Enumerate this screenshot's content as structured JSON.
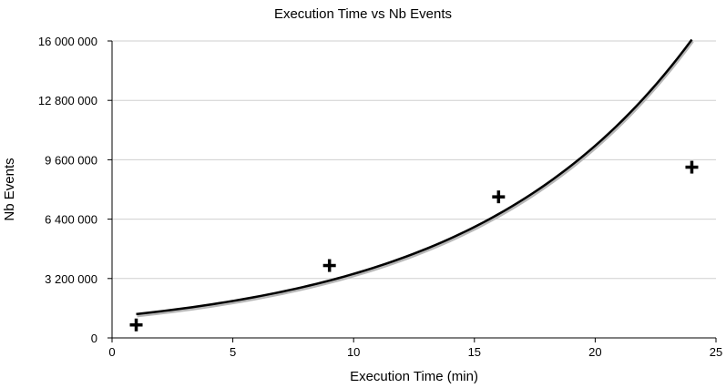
{
  "chart_data": {
    "type": "scatter",
    "title": "Execution Time vs Nb Events",
    "xlabel": "Execution Time (min)",
    "ylabel": "Nb Events",
    "xlim": [
      0,
      25
    ],
    "ylim": [
      0,
      16000000
    ],
    "x_ticks": [
      0,
      5,
      10,
      15,
      20,
      25
    ],
    "x_tick_labels": [
      "0",
      "5",
      "10",
      "15",
      "20",
      "25"
    ],
    "y_ticks": [
      0,
      3200000,
      6400000,
      9600000,
      12800000,
      16000000
    ],
    "y_tick_labels": [
      "0",
      "3 200 000",
      "6 400 000",
      "9 600 000",
      "12 800 000",
      "16 000 000"
    ],
    "grid": "horizontal",
    "legend": "none",
    "series": [
      {
        "kind": "points",
        "marker": "plus",
        "color": "#000000",
        "x": [
          1,
          9,
          16,
          24
        ],
        "y": [
          700000,
          3900000,
          7600000,
          9200000
        ]
      },
      {
        "kind": "trendline",
        "fit": "exponential",
        "color": "#000000",
        "x_range": [
          1,
          24
        ],
        "a": 1150000,
        "b": 0.1099
      }
    ]
  }
}
